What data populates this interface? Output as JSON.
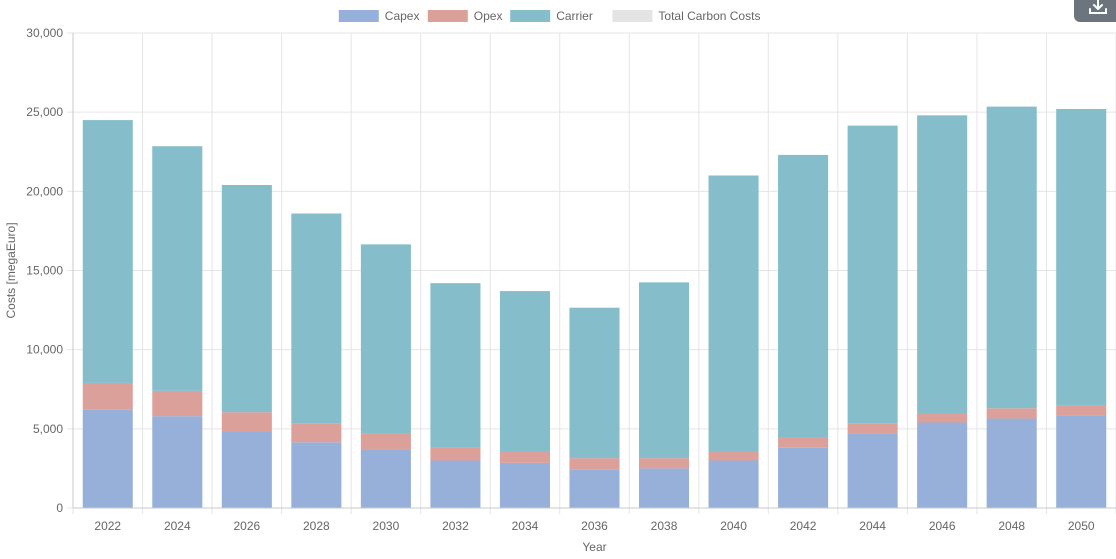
{
  "toolbar": {
    "download_icon": "download-icon"
  },
  "colors": {
    "capex": "#97b0d9",
    "opex": "#dca09b",
    "carrier": "#85bdca",
    "carbon": "#e4e4e4",
    "grid": "#e5e5e5",
    "axis": "#c8c8c8"
  },
  "chart_data": {
    "type": "bar",
    "stacked": true,
    "categories": [
      "2022",
      "2024",
      "2026",
      "2028",
      "2030",
      "2032",
      "2034",
      "2036",
      "2038",
      "2040",
      "2042",
      "2044",
      "2046",
      "2048",
      "2050"
    ],
    "series": [
      {
        "name": "Capex",
        "values": [
          6200,
          5800,
          4800,
          4150,
          3700,
          3000,
          2850,
          2450,
          2500,
          3000,
          3800,
          4700,
          5400,
          5650,
          5850
        ]
      },
      {
        "name": "Opex",
        "values": [
          1700,
          1600,
          1250,
          1200,
          1000,
          800,
          750,
          700,
          650,
          600,
          650,
          650,
          600,
          650,
          650
        ]
      },
      {
        "name": "Carrier",
        "values": [
          16600,
          15450,
          14350,
          13250,
          11950,
          10400,
          10100,
          9500,
          11100,
          17400,
          17850,
          18800,
          18800,
          19050,
          18700
        ]
      },
      {
        "name": "Total Carbon Costs",
        "values": [
          0,
          0,
          0,
          0,
          0,
          0,
          0,
          0,
          0,
          0,
          0,
          0,
          0,
          0,
          0
        ]
      }
    ],
    "xlabel": "Year",
    "ylabel": "Costs [megaEuro]",
    "ylim": [
      0,
      30000
    ],
    "yticks": [
      "0",
      "5,000",
      "10,000",
      "15,000",
      "20,000",
      "25,000",
      "30,000"
    ],
    "grid": true,
    "legend_position": "top-center"
  }
}
